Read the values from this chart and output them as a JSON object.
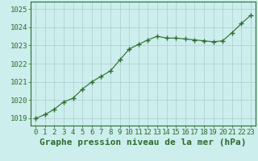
{
  "x": [
    0,
    1,
    2,
    3,
    4,
    5,
    6,
    7,
    8,
    9,
    10,
    11,
    12,
    13,
    14,
    15,
    16,
    17,
    18,
    19,
    20,
    21,
    22,
    23
  ],
  "y": [
    1019.0,
    1019.2,
    1019.5,
    1019.9,
    1020.1,
    1020.6,
    1021.0,
    1021.3,
    1021.6,
    1022.2,
    1022.8,
    1023.05,
    1023.3,
    1023.5,
    1023.4,
    1023.4,
    1023.35,
    1023.3,
    1023.25,
    1023.2,
    1023.25,
    1023.7,
    1024.2,
    1024.65
  ],
  "line_color": "#2d6b2d",
  "marker": "+",
  "marker_size": 4,
  "marker_linewidth": 1.0,
  "bg_color": "#cceeed",
  "grid_color": "#aacccc",
  "spine_color": "#2d6b2d",
  "xlabel": "Graphe pression niveau de la mer (hPa)",
  "xlabel_color": "#2d6b2d",
  "xlabel_fontsize": 8,
  "tick_color": "#2d6b2d",
  "tick_fontsize": 6.5,
  "ylim": [
    1018.6,
    1025.4
  ],
  "xlim": [
    -0.5,
    23.5
  ],
  "yticks": [
    1019,
    1020,
    1021,
    1022,
    1023,
    1024,
    1025
  ],
  "xticks": [
    0,
    1,
    2,
    3,
    4,
    5,
    6,
    7,
    8,
    9,
    10,
    11,
    12,
    13,
    14,
    15,
    16,
    17,
    18,
    19,
    20,
    21,
    22,
    23
  ]
}
